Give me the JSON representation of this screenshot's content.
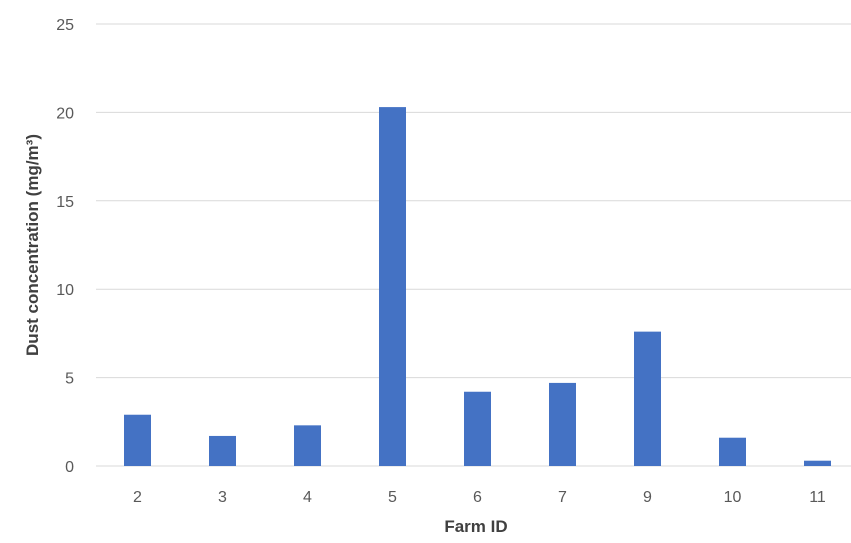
{
  "chart_data": {
    "type": "bar",
    "categories": [
      "2",
      "3",
      "4",
      "5",
      "6",
      "7",
      "9",
      "10",
      "11"
    ],
    "values": [
      2.9,
      1.7,
      2.3,
      20.3,
      4.2,
      4.7,
      7.6,
      1.6,
      0.3
    ],
    "xlabel": "Farm ID",
    "ylabel": "Dust concentration (mg/m³)",
    "ylim": [
      0,
      25
    ],
    "yticks": [
      "0",
      "5",
      "10",
      "15",
      "20",
      "25"
    ],
    "grid": true,
    "legend": "none",
    "bar_color": "#4472C4",
    "grid_color": "#D9D9D9"
  }
}
